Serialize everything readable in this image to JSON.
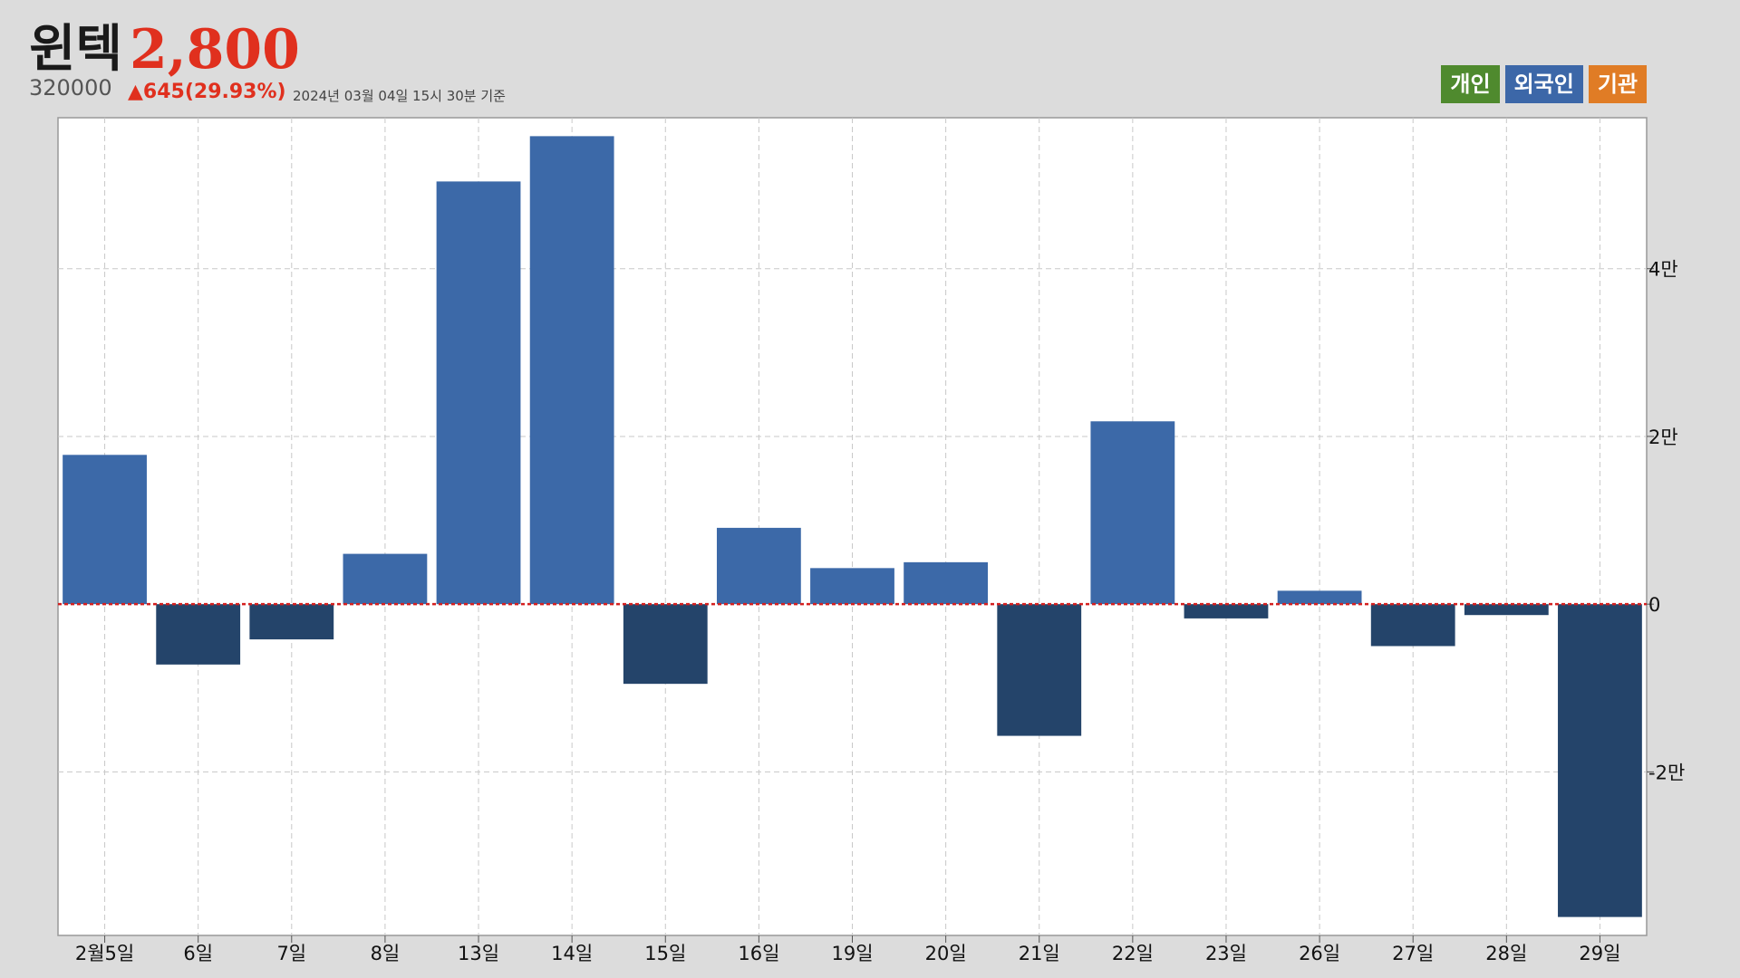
{
  "header": {
    "name": "윈텍",
    "price": "2,800",
    "code": "320000",
    "change": "▲645(29.93%)",
    "date": "2024년 03월 04일 15시 30분 기준"
  },
  "legend": [
    {
      "label": "개인",
      "color": "#4f8a2e"
    },
    {
      "label": "외국인",
      "color": "#3c67a8"
    },
    {
      "label": "기관",
      "color": "#e07c25"
    }
  ],
  "colors": {
    "positive": "#3c69a8",
    "negative": "#24446a",
    "zero_line": "#d42020",
    "grid": "#c8c8c8",
    "plot_bg": "#ffffff"
  },
  "chart_data": {
    "type": "bar",
    "categories": [
      "2월5일",
      "6일",
      "7일",
      "8일",
      "13일",
      "14일",
      "15일",
      "16일",
      "19일",
      "20일",
      "21일",
      "22일",
      "23일",
      "26일",
      "27일",
      "28일",
      "29일"
    ],
    "series": [
      {
        "name": "외국인",
        "values": [
          17800,
          -7200,
          -4200,
          6000,
          50400,
          55800,
          -9500,
          9100,
          4300,
          5000,
          -15700,
          21800,
          -1700,
          1600,
          -5000,
          -1300,
          -37300
        ]
      }
    ],
    "yticks": [
      {
        "value": 40000,
        "label": "4만"
      },
      {
        "value": 20000,
        "label": "2만"
      },
      {
        "value": 0,
        "label": "0"
      },
      {
        "value": -20000,
        "label": "-2만"
      }
    ],
    "ylim": [
      -39500,
      58000
    ],
    "grid": true
  }
}
